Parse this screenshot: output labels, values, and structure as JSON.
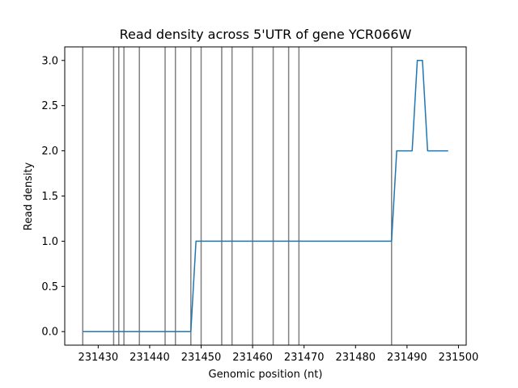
{
  "chart_data": {
    "type": "line",
    "title": "Read density across 5'UTR of gene YCR066W",
    "xlabel": "Genomic position (nt)",
    "ylabel": "Read density",
    "xlim": [
      231423.5,
      231501.5
    ],
    "ylim": [
      -0.15,
      3.15
    ],
    "grid": false,
    "x_ticks": [
      231430,
      231440,
      231450,
      231460,
      231470,
      231480,
      231490,
      231500
    ],
    "x_tick_labels": [
      "231430",
      "231440",
      "231450",
      "231460",
      "231470",
      "231480",
      "231490",
      "231500"
    ],
    "y_ticks": [
      0.0,
      0.5,
      1.0,
      1.5,
      2.0,
      2.5,
      3.0
    ],
    "y_tick_labels": [
      "0.0",
      "0.5",
      "1.0",
      "1.5",
      "2.0",
      "2.5",
      "3.0"
    ],
    "series_color": "#1f77b4",
    "vline_color": "#808080",
    "vlines": [
      231427,
      231433,
      231434,
      231435,
      231438,
      231443,
      231445,
      231448,
      231450,
      231454,
      231456,
      231460,
      231464,
      231467,
      231469,
      231487
    ],
    "series": [
      {
        "x": [
          231427,
          231428,
          231429,
          231430,
          231431,
          231432,
          231433,
          231434,
          231435,
          231436,
          231437,
          231438,
          231439,
          231440,
          231441,
          231442,
          231443,
          231444,
          231445,
          231446,
          231447,
          231448,
          231449,
          231450,
          231451,
          231452,
          231453,
          231454,
          231455,
          231456,
          231457,
          231458,
          231459,
          231460,
          231461,
          231462,
          231463,
          231464,
          231465,
          231466,
          231467,
          231468,
          231469,
          231470,
          231471,
          231472,
          231473,
          231474,
          231475,
          231476,
          231477,
          231478,
          231479,
          231480,
          231481,
          231482,
          231483,
          231484,
          231485,
          231486,
          231487,
          231488,
          231489,
          231490,
          231491,
          231492,
          231493,
          231494,
          231495,
          231496,
          231497,
          231498
        ],
        "y": [
          0,
          0,
          0,
          0,
          0,
          0,
          0,
          0,
          0,
          0,
          0,
          0,
          0,
          0,
          0,
          0,
          0,
          0,
          0,
          0,
          0,
          0,
          1,
          1,
          1,
          1,
          1,
          1,
          1,
          1,
          1,
          1,
          1,
          1,
          1,
          1,
          1,
          1,
          1,
          1,
          1,
          1,
          1,
          1,
          1,
          1,
          1,
          1,
          1,
          1,
          1,
          1,
          1,
          1,
          1,
          1,
          1,
          1,
          1,
          1,
          1,
          2,
          2,
          2,
          2,
          3,
          3,
          2,
          2,
          2,
          2,
          2
        ]
      }
    ]
  }
}
